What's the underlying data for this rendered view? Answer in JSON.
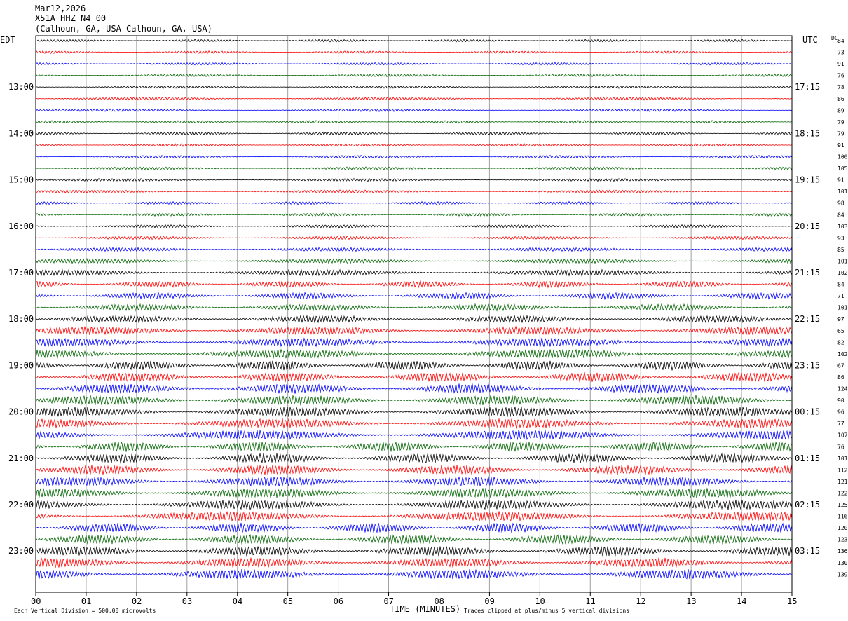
{
  "header": {
    "line1": "Mar12,2026",
    "line2": "X51A HHZ N4 00",
    "line3": "(Calhoun, GA, USA Calhoun, GA, USA)"
  },
  "left_axis_title": "EDT",
  "right_axis_title": "UTC",
  "dc_header": "DC",
  "footer": {
    "scale": "Each Vertical Division =  500.00 microvolts",
    "clip": "Traces clipped at plus/minus 5 vertical divisions"
  },
  "colors": {
    "trace_cycle": [
      "#000000",
      "#ff0000",
      "#0000ff",
      "#006400"
    ],
    "grid": "#a0a0a0",
    "frame": "#000000"
  },
  "chart_data": {
    "type": "line",
    "title": "Mar12,2026 X51A HHZ N4 00 (Calhoun, GA, USA Calhoun, GA, USA)",
    "xlabel": "TIME (MINUTES)",
    "x_ticks": [
      "00",
      "01",
      "02",
      "03",
      "04",
      "05",
      "06",
      "07",
      "08",
      "09",
      "10",
      "11",
      "12",
      "13",
      "14",
      "15"
    ],
    "xlim": [
      0,
      15
    ],
    "grid": "vertical lines at each minute",
    "rows_per_hour": 4,
    "minutes_per_row": 15,
    "left_labels": [
      "13:00",
      "14:00",
      "15:00",
      "16:00",
      "17:00",
      "18:00",
      "19:00",
      "20:00",
      "21:00",
      "22:00",
      "23:00"
    ],
    "right_labels": [
      "17:15",
      "18:15",
      "19:15",
      "20:15",
      "21:15",
      "22:15",
      "23:15",
      "00:15",
      "01:15",
      "02:15",
      "03:15"
    ],
    "dc_values": [
      84,
      73,
      91,
      76,
      78,
      86,
      89,
      79,
      79,
      91,
      100,
      105,
      91,
      101,
      98,
      84,
      103,
      93,
      85,
      101,
      102,
      84,
      71,
      101,
      97,
      65,
      82,
      102,
      67,
      86,
      124,
      90,
      96,
      77,
      107,
      76,
      101,
      112,
      121,
      122,
      125,
      116,
      120,
      123,
      136,
      130,
      139
    ],
    "row_amplitude_divisions": [
      1.2,
      1.2,
      1.2,
      1.2,
      1.2,
      1.3,
      1.3,
      1.3,
      1.3,
      1.3,
      1.3,
      1.3,
      1.3,
      1.4,
      1.4,
      1.4,
      1.5,
      1.6,
      1.8,
      2.2,
      2.8,
      3.0,
      3.0,
      3.2,
      3.4,
      3.8,
      4.0,
      4.2,
      4.5,
      4.5,
      4.5,
      4.5,
      4.5,
      4.5,
      4.5,
      4.5,
      4.5,
      4.5,
      4.5,
      4.5,
      4.5,
      4.5,
      4.5,
      4.5,
      4.5,
      4.5,
      4.5
    ]
  }
}
